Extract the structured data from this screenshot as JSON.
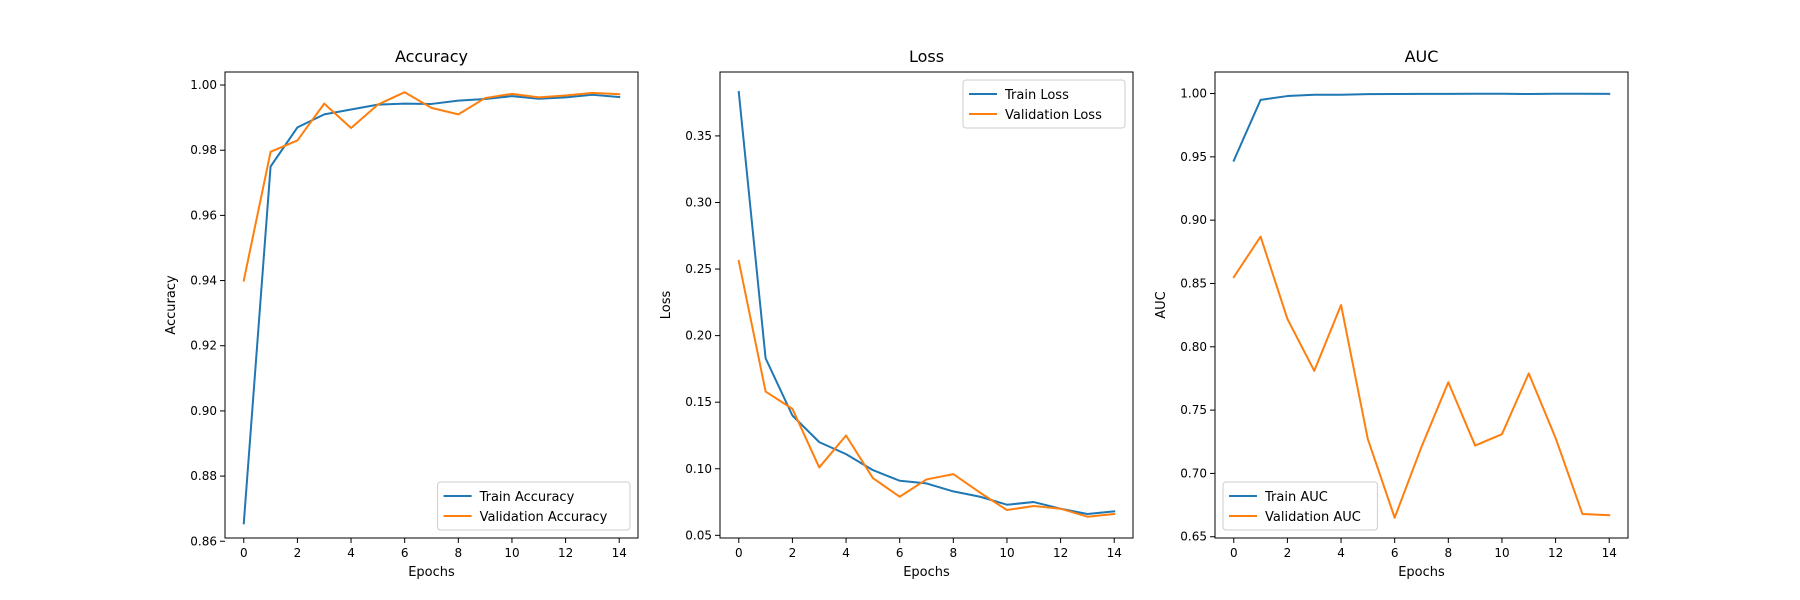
{
  "chart_data": [
    {
      "type": "line",
      "title": "Accuracy",
      "xlabel": "Epochs",
      "ylabel": "Accuracy",
      "xlim": [
        -0.7,
        14.7
      ],
      "ylim": [
        0.861,
        1.004
      ],
      "xticks": [
        0,
        2,
        4,
        6,
        8,
        10,
        12,
        14
      ],
      "xtick_labels": [
        "0",
        "2",
        "4",
        "6",
        "8",
        "10",
        "12",
        "14"
      ],
      "yticks": [
        0.86,
        0.88,
        0.9,
        0.92,
        0.94,
        0.96,
        0.98,
        1.0
      ],
      "ytick_labels": [
        "0.86",
        "0.88",
        "0.90",
        "0.92",
        "0.94",
        "0.96",
        "0.98",
        "1.00"
      ],
      "grid": false,
      "legend_position": "lower-right",
      "x": [
        0,
        1,
        2,
        3,
        4,
        5,
        6,
        7,
        8,
        9,
        10,
        11,
        12,
        13,
        14
      ],
      "series": [
        {
          "name": "Train Accuracy",
          "color": "#1f77b4",
          "values": [
            0.8655,
            0.975,
            0.987,
            0.991,
            0.9925,
            0.994,
            0.9943,
            0.9942,
            0.9952,
            0.9957,
            0.9966,
            0.9958,
            0.9962,
            0.997,
            0.9963
          ]
        },
        {
          "name": "Validation Accuracy",
          "color": "#ff7f0e",
          "values": [
            0.94,
            0.9795,
            0.983,
            0.9943,
            0.9868,
            0.994,
            0.9978,
            0.993,
            0.991,
            0.996,
            0.9973,
            0.9962,
            0.9968,
            0.9976,
            0.9972
          ]
        }
      ]
    },
    {
      "type": "line",
      "title": "Loss",
      "xlabel": "Epochs",
      "ylabel": "Loss",
      "xlim": [
        -0.7,
        14.7
      ],
      "ylim": [
        0.048,
        0.398
      ],
      "xticks": [
        0,
        2,
        4,
        6,
        8,
        10,
        12,
        14
      ],
      "xtick_labels": [
        "0",
        "2",
        "4",
        "6",
        "8",
        "10",
        "12",
        "14"
      ],
      "yticks": [
        0.05,
        0.1,
        0.15,
        0.2,
        0.25,
        0.3,
        0.35
      ],
      "ytick_labels": [
        "0.05",
        "0.10",
        "0.15",
        "0.20",
        "0.25",
        "0.30",
        "0.35"
      ],
      "grid": false,
      "legend_position": "upper-right",
      "x": [
        0,
        1,
        2,
        3,
        4,
        5,
        6,
        7,
        8,
        9,
        10,
        11,
        12,
        13,
        14
      ],
      "series": [
        {
          "name": "Train Loss",
          "color": "#1f77b4",
          "values": [
            0.383,
            0.183,
            0.14,
            0.12,
            0.111,
            0.099,
            0.091,
            0.089,
            0.083,
            0.079,
            0.073,
            0.075,
            0.07,
            0.066,
            0.068
          ]
        },
        {
          "name": "Validation Loss",
          "color": "#ff7f0e",
          "values": [
            0.256,
            0.158,
            0.145,
            0.101,
            0.125,
            0.093,
            0.079,
            0.092,
            0.096,
            0.082,
            0.069,
            0.072,
            0.07,
            0.064,
            0.066
          ]
        }
      ]
    },
    {
      "type": "line",
      "title": "AUC",
      "xlabel": "Epochs",
      "ylabel": "AUC",
      "xlim": [
        -0.7,
        14.7
      ],
      "ylim": [
        0.649,
        1.017
      ],
      "xticks": [
        0,
        2,
        4,
        6,
        8,
        10,
        12,
        14
      ],
      "xtick_labels": [
        "0",
        "2",
        "4",
        "6",
        "8",
        "10",
        "12",
        "14"
      ],
      "yticks": [
        0.65,
        0.7,
        0.75,
        0.8,
        0.85,
        0.9,
        0.95,
        1.0
      ],
      "ytick_labels": [
        "0.65",
        "0.70",
        "0.75",
        "0.80",
        "0.85",
        "0.90",
        "0.95",
        "1.00"
      ],
      "grid": false,
      "legend_position": "lower-left",
      "x": [
        0,
        1,
        2,
        3,
        4,
        5,
        6,
        7,
        8,
        9,
        10,
        11,
        12,
        13,
        14
      ],
      "series": [
        {
          "name": "Train AUC",
          "color": "#1f77b4",
          "values": [
            0.947,
            0.995,
            0.998,
            0.999,
            0.999,
            0.9995,
            0.9996,
            0.9997,
            0.9997,
            0.9998,
            0.9998,
            0.9996,
            0.9998,
            0.9998,
            0.9997
          ]
        },
        {
          "name": "Validation AUC",
          "color": "#ff7f0e",
          "values": [
            0.855,
            0.887,
            0.822,
            0.781,
            0.833,
            0.727,
            0.665,
            0.721,
            0.772,
            0.722,
            0.731,
            0.779,
            0.728,
            0.668,
            0.667
          ]
        }
      ]
    }
  ]
}
